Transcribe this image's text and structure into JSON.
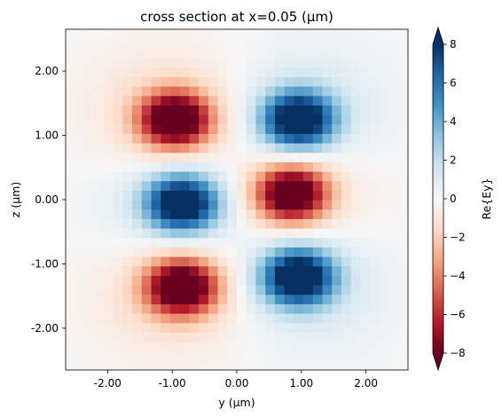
{
  "chart_data": {
    "type": "heatmap",
    "title": "cross section at x=0.05 (μm)",
    "xlabel": "y (μm)",
    "ylabel": "z (μm)",
    "colorbar_label": "Re{Ey}",
    "xlim": [
      -2.65,
      2.65
    ],
    "ylim": [
      -2.65,
      2.65
    ],
    "x_ticks": [
      -2.0,
      -1.0,
      0.0,
      1.0,
      2.0
    ],
    "x_tick_labels": [
      "-2.00",
      "-1.00",
      "0.00",
      "1.00",
      "2.00"
    ],
    "y_ticks": [
      -2.0,
      -1.0,
      0.0,
      1.0,
      2.0
    ],
    "y_tick_labels": [
      "-2.00",
      "-1.00",
      "0.00",
      "1.00",
      "2.00"
    ],
    "colorbar_range": [
      -8,
      8
    ],
    "colorbar_ticks": [
      -8,
      -6,
      -4,
      -2,
      0,
      2,
      4,
      6,
      8
    ],
    "colorbar_tick_labels": [
      "−8",
      "−6",
      "−4",
      "−2",
      "0",
      "2",
      "4",
      "6",
      "8"
    ],
    "colormap": "RdBu",
    "grid": false,
    "field_lobes": [
      {
        "y": -0.95,
        "z": 1.25,
        "value": -8
      },
      {
        "y": 0.95,
        "z": 1.25,
        "value": 8
      },
      {
        "y": -0.85,
        "z": -0.05,
        "value": 8
      },
      {
        "y": 0.85,
        "z": 0.1,
        "value": -8
      },
      {
        "y": -0.85,
        "z": -1.35,
        "value": -8
      },
      {
        "y": 0.95,
        "z": -1.2,
        "value": 8
      }
    ]
  }
}
